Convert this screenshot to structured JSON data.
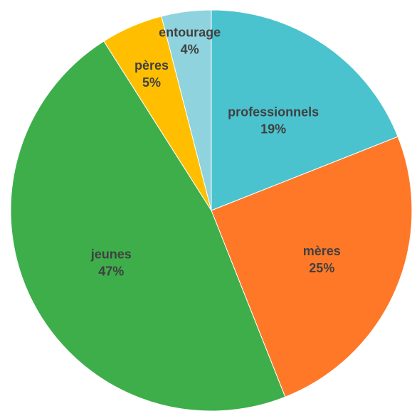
{
  "chart_data": {
    "type": "pie",
    "categories": [
      "professionnels",
      "mères",
      "jeunes",
      "pères",
      "entourage"
    ],
    "values": [
      19,
      25,
      47,
      5,
      4
    ],
    "value_labels": [
      "19%",
      "25%",
      "47%",
      "5%",
      "4%"
    ],
    "colors": [
      "#4BC3CF",
      "#FF7828",
      "#3DAE4A",
      "#FFBF00",
      "#8ED3DD"
    ],
    "start": "12 o'clock",
    "direction": "clockwise",
    "title": "",
    "legend": "none"
  }
}
